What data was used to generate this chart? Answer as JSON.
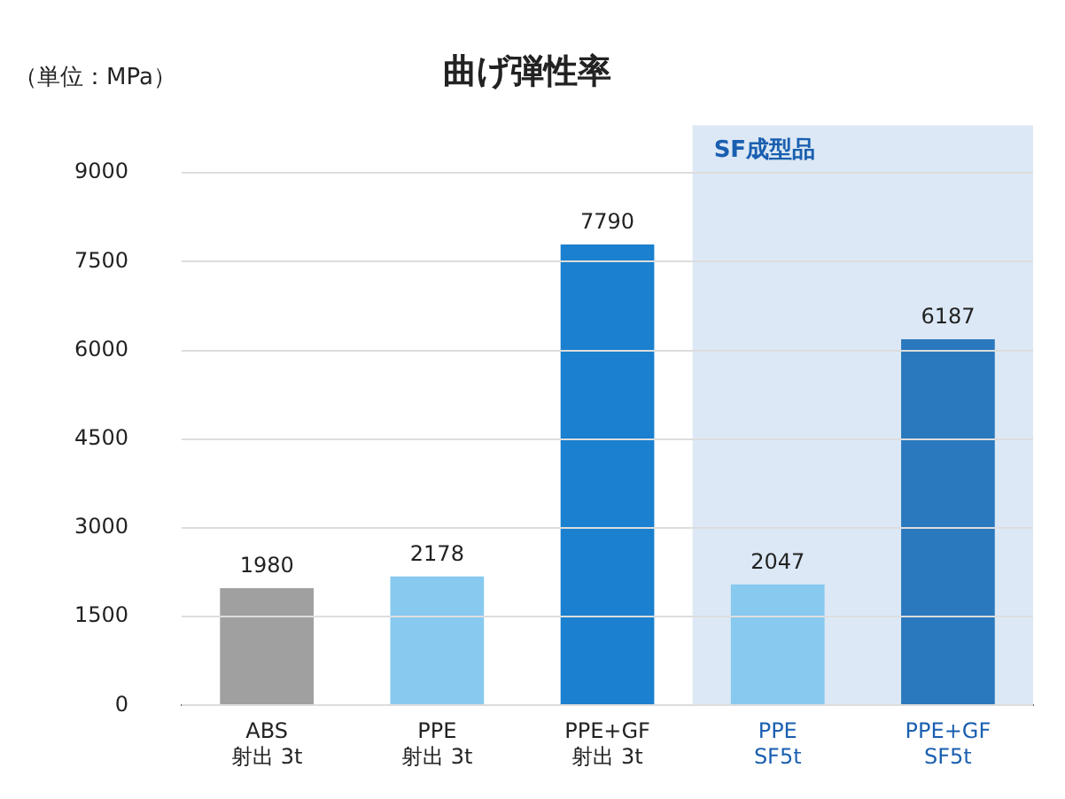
{
  "chart_data": {
    "type": "bar",
    "title": "曲げ弾性率",
    "ylabel": "（単位：MPa）",
    "categories": [
      "ABS\n射出 3t",
      "PPE\n射出 3t",
      "PPE+GF\n射出 3t",
      "PPE\nSF5t",
      "PPE+GF\nSF5t"
    ],
    "values": [
      1980,
      2178,
      7790,
      2047,
      6187
    ],
    "colors": [
      "#a0a0a0",
      "#87c9ef",
      "#1a80cf",
      "#87c9ef",
      "#2a78bd"
    ],
    "ylim": [
      0,
      9800
    ],
    "yticks": [
      0,
      1500,
      3000,
      4500,
      6000,
      7500,
      9000
    ],
    "grid": "y",
    "legend": false,
    "data_labels": true,
    "bands": [
      {
        "axis": "x",
        "from": "PPE\nSF5t",
        "to": "PPE+GF\nSF5t",
        "label": "SF成型品",
        "color": "#dce8f5"
      }
    ]
  }
}
